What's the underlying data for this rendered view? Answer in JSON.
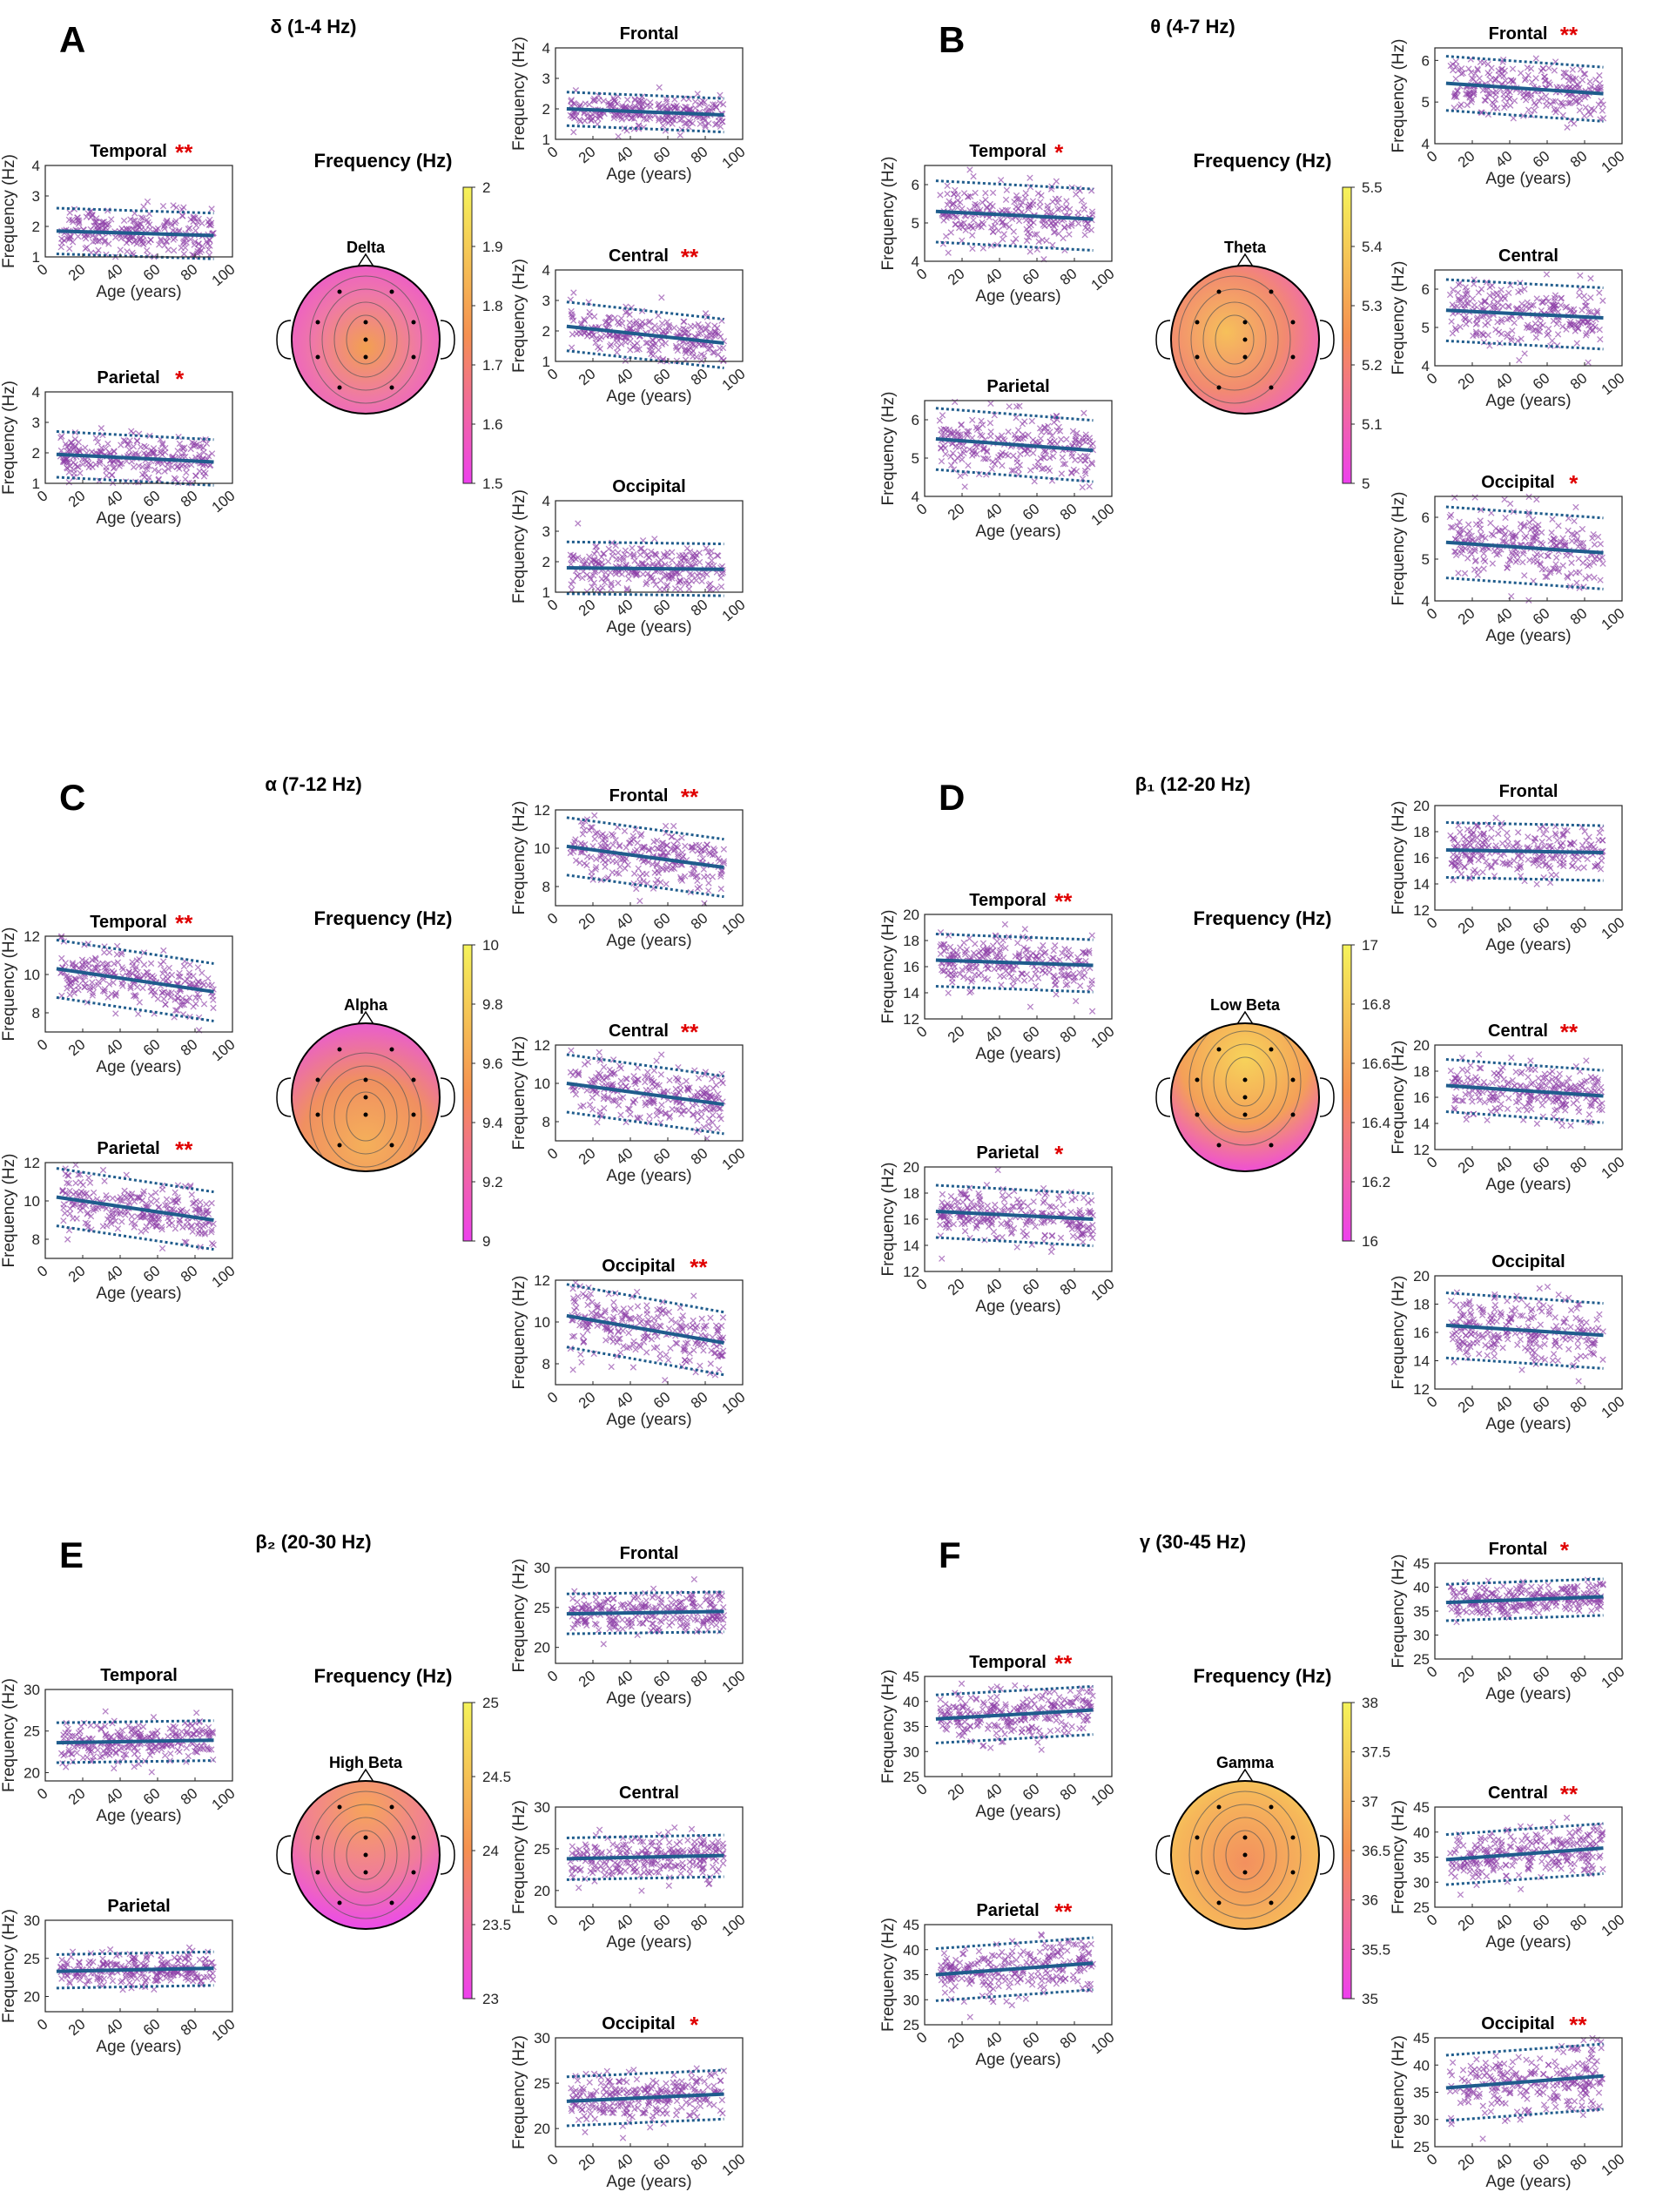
{
  "figure": {
    "colors": {
      "scatter": "#8e3fa8",
      "fit": "#1f5c8c",
      "sig": "#e00000",
      "cmap_low": "#ee40ee",
      "cmap_mid": "#f59050",
      "cmap_high": "#f5f35a"
    },
    "common": {
      "x_label": "Age (years)",
      "y_label": "Frequency (Hz)",
      "colorbar_label": "Frequency (Hz)"
    }
  },
  "chart_data": [
    {
      "panel": "A",
      "type": "scatter",
      "band": "δ (1-4 Hz)",
      "head_label": "Delta",
      "colorbar": {
        "min": 1.5,
        "max": 2,
        "ticks": [
          "2",
          "1.9",
          "1.8",
          "1.7",
          "1.6",
          "1.5"
        ]
      },
      "subplots": [
        {
          "region": "Frontal",
          "sig": "",
          "ylim": [
            1,
            4
          ],
          "yticks": [
            1,
            2,
            3,
            4
          ],
          "fit": [
            2.0,
            1.8
          ],
          "ci": 0.55
        },
        {
          "region": "Temporal",
          "sig": "**",
          "ylim": [
            1,
            4
          ],
          "yticks": [
            1,
            2,
            3,
            4
          ],
          "fit": [
            1.85,
            1.7
          ],
          "ci": 0.75
        },
        {
          "region": "Central",
          "sig": "**",
          "ylim": [
            1,
            4
          ],
          "yticks": [
            1,
            2,
            3,
            4
          ],
          "fit": [
            2.15,
            1.6
          ],
          "ci": 0.8
        },
        {
          "region": "Parietal",
          "sig": "*",
          "ylim": [
            1,
            4
          ],
          "yticks": [
            1,
            2,
            3,
            4
          ],
          "fit": [
            1.95,
            1.7
          ],
          "ci": 0.75
        },
        {
          "region": "Occipital",
          "sig": "",
          "ylim": [
            1,
            4
          ],
          "yticks": [
            1,
            2,
            3,
            4
          ],
          "fit": [
            1.8,
            1.75
          ],
          "ci": 0.85
        }
      ]
    },
    {
      "panel": "B",
      "type": "scatter",
      "band": "θ (4-7 Hz)",
      "head_label": "Theta",
      "colorbar": {
        "min": 5,
        "max": 5.5,
        "ticks": [
          "5.5",
          "5.4",
          "5.3",
          "5.2",
          "5.1",
          "5"
        ]
      },
      "subplots": [
        {
          "region": "Frontal",
          "sig": "**",
          "ylim": [
            4,
            6.3
          ],
          "yticks": [
            4,
            5,
            6
          ],
          "fit": [
            5.45,
            5.2
          ],
          "ci": 0.65
        },
        {
          "region": "Temporal",
          "sig": "*",
          "ylim": [
            4,
            6.5
          ],
          "yticks": [
            4,
            5,
            6
          ],
          "fit": [
            5.3,
            5.1
          ],
          "ci": 0.8
        },
        {
          "region": "Central",
          "sig": "",
          "ylim": [
            4,
            6.5
          ],
          "yticks": [
            4,
            5,
            6
          ],
          "fit": [
            5.45,
            5.25
          ],
          "ci": 0.8
        },
        {
          "region": "Parietal",
          "sig": "",
          "ylim": [
            4,
            6.5
          ],
          "yticks": [
            4,
            5,
            6
          ],
          "fit": [
            5.5,
            5.2
          ],
          "ci": 0.8
        },
        {
          "region": "Occipital",
          "sig": "*",
          "ylim": [
            4,
            6.5
          ],
          "yticks": [
            4,
            5,
            6
          ],
          "fit": [
            5.4,
            5.15
          ],
          "ci": 0.85
        }
      ]
    },
    {
      "panel": "C",
      "type": "scatter",
      "band": "α (7-12 Hz)",
      "head_label": "Alpha",
      "colorbar": {
        "min": 9,
        "max": 10,
        "ticks": [
          "10",
          "9.8",
          "9.6",
          "9.4",
          "9.2",
          "9"
        ]
      },
      "subplots": [
        {
          "region": "Frontal",
          "sig": "**",
          "ylim": [
            7,
            12
          ],
          "yticks": [
            8,
            10,
            12
          ],
          "fit": [
            10.1,
            9.0
          ],
          "ci": 1.5
        },
        {
          "region": "Temporal",
          "sig": "**",
          "ylim": [
            7,
            12
          ],
          "yticks": [
            8,
            10,
            12
          ],
          "fit": [
            10.3,
            9.1
          ],
          "ci": 1.5
        },
        {
          "region": "Central",
          "sig": "**",
          "ylim": [
            7,
            12
          ],
          "yticks": [
            8,
            10,
            12
          ],
          "fit": [
            10.0,
            8.9
          ],
          "ci": 1.5
        },
        {
          "region": "Parietal",
          "sig": "**",
          "ylim": [
            7,
            12
          ],
          "yticks": [
            8,
            10,
            12
          ],
          "fit": [
            10.2,
            9.0
          ],
          "ci": 1.5
        },
        {
          "region": "Occipital",
          "sig": "**",
          "ylim": [
            7,
            12
          ],
          "yticks": [
            8,
            10,
            12
          ],
          "fit": [
            10.3,
            9.0
          ],
          "ci": 1.5
        }
      ]
    },
    {
      "panel": "D",
      "type": "scatter",
      "band": "β₁ (12-20 Hz)",
      "head_label": "Low Beta",
      "colorbar": {
        "min": 16,
        "max": 17,
        "ticks": [
          "17",
          "16.8",
          "16.6",
          "16.4",
          "16.2",
          "16"
        ]
      },
      "subplots": [
        {
          "region": "Frontal",
          "sig": "",
          "ylim": [
            12,
            20
          ],
          "yticks": [
            12,
            14,
            16,
            18,
            20
          ],
          "fit": [
            16.6,
            16.4
          ],
          "ci": 2.1
        },
        {
          "region": "Temporal",
          "sig": "**",
          "ylim": [
            12,
            20
          ],
          "yticks": [
            12,
            14,
            16,
            18,
            20
          ],
          "fit": [
            16.5,
            16.1
          ],
          "ci": 2.0
        },
        {
          "region": "Central",
          "sig": "**",
          "ylim": [
            12,
            20
          ],
          "yticks": [
            12,
            14,
            16,
            18,
            20
          ],
          "fit": [
            16.9,
            16.1
          ],
          "ci": 2.0
        },
        {
          "region": "Parietal",
          "sig": "*",
          "ylim": [
            12,
            20
          ],
          "yticks": [
            12,
            14,
            16,
            18,
            20
          ],
          "fit": [
            16.6,
            16.0
          ],
          "ci": 2.0
        },
        {
          "region": "Occipital",
          "sig": "",
          "ylim": [
            12,
            20
          ],
          "yticks": [
            12,
            14,
            16,
            18,
            20
          ],
          "fit": [
            16.5,
            15.8
          ],
          "ci": 2.3
        }
      ]
    },
    {
      "panel": "E",
      "type": "scatter",
      "band": "β₂ (20-30 Hz)",
      "head_label": "High Beta",
      "colorbar": {
        "min": 23,
        "max": 25,
        "ticks": [
          "25",
          "24.5",
          "24",
          "23.5",
          "23"
        ]
      },
      "subplots": [
        {
          "region": "Frontal",
          "sig": "",
          "ylim": [
            18,
            30
          ],
          "yticks": [
            20,
            25,
            30
          ],
          "fit": [
            24.2,
            24.5
          ],
          "ci": 2.5
        },
        {
          "region": "Temporal",
          "sig": "",
          "ylim": [
            19,
            30
          ],
          "yticks": [
            20,
            25,
            30
          ],
          "fit": [
            23.6,
            23.9
          ],
          "ci": 2.4
        },
        {
          "region": "Central",
          "sig": "",
          "ylim": [
            18,
            30
          ],
          "yticks": [
            20,
            25,
            30
          ],
          "fit": [
            23.8,
            24.2
          ],
          "ci": 2.5
        },
        {
          "region": "Parietal",
          "sig": "",
          "ylim": [
            18,
            30
          ],
          "yticks": [
            20,
            25,
            30
          ],
          "fit": [
            23.3,
            23.7
          ],
          "ci": 2.2
        },
        {
          "region": "Occipital",
          "sig": "*",
          "ylim": [
            18,
            30
          ],
          "yticks": [
            20,
            25,
            30
          ],
          "fit": [
            23.0,
            23.8
          ],
          "ci": 2.7
        }
      ]
    },
    {
      "panel": "F",
      "type": "scatter",
      "band": "γ (30-45 Hz)",
      "head_label": "Gamma",
      "colorbar": {
        "min": 35,
        "max": 38,
        "ticks": [
          "38",
          "37.5",
          "37",
          "36.5",
          "36",
          "35.5",
          "35"
        ]
      },
      "subplots": [
        {
          "region": "Frontal",
          "sig": "*",
          "ylim": [
            25,
            45
          ],
          "yticks": [
            25,
            30,
            35,
            40,
            45
          ],
          "fit": [
            36.8,
            38.0
          ],
          "ci": 3.8
        },
        {
          "region": "Temporal",
          "sig": "**",
          "ylim": [
            25,
            45
          ],
          "yticks": [
            25,
            30,
            35,
            40,
            45
          ],
          "fit": [
            36.5,
            38.3
          ],
          "ci": 4.8
        },
        {
          "region": "Central",
          "sig": "**",
          "ylim": [
            25,
            45
          ],
          "yticks": [
            25,
            30,
            35,
            40,
            45
          ],
          "fit": [
            34.5,
            36.8
          ],
          "ci": 5.0
        },
        {
          "region": "Parietal",
          "sig": "**",
          "ylim": [
            25,
            45
          ],
          "yticks": [
            25,
            30,
            35,
            40,
            45
          ],
          "fit": [
            35.0,
            37.3
          ],
          "ci": 5.2
        },
        {
          "region": "Occipital",
          "sig": "**",
          "ylim": [
            25,
            45
          ],
          "yticks": [
            25,
            30,
            35,
            40,
            45
          ],
          "fit": [
            35.8,
            38.0
          ],
          "ci": 6.0
        }
      ]
    }
  ]
}
